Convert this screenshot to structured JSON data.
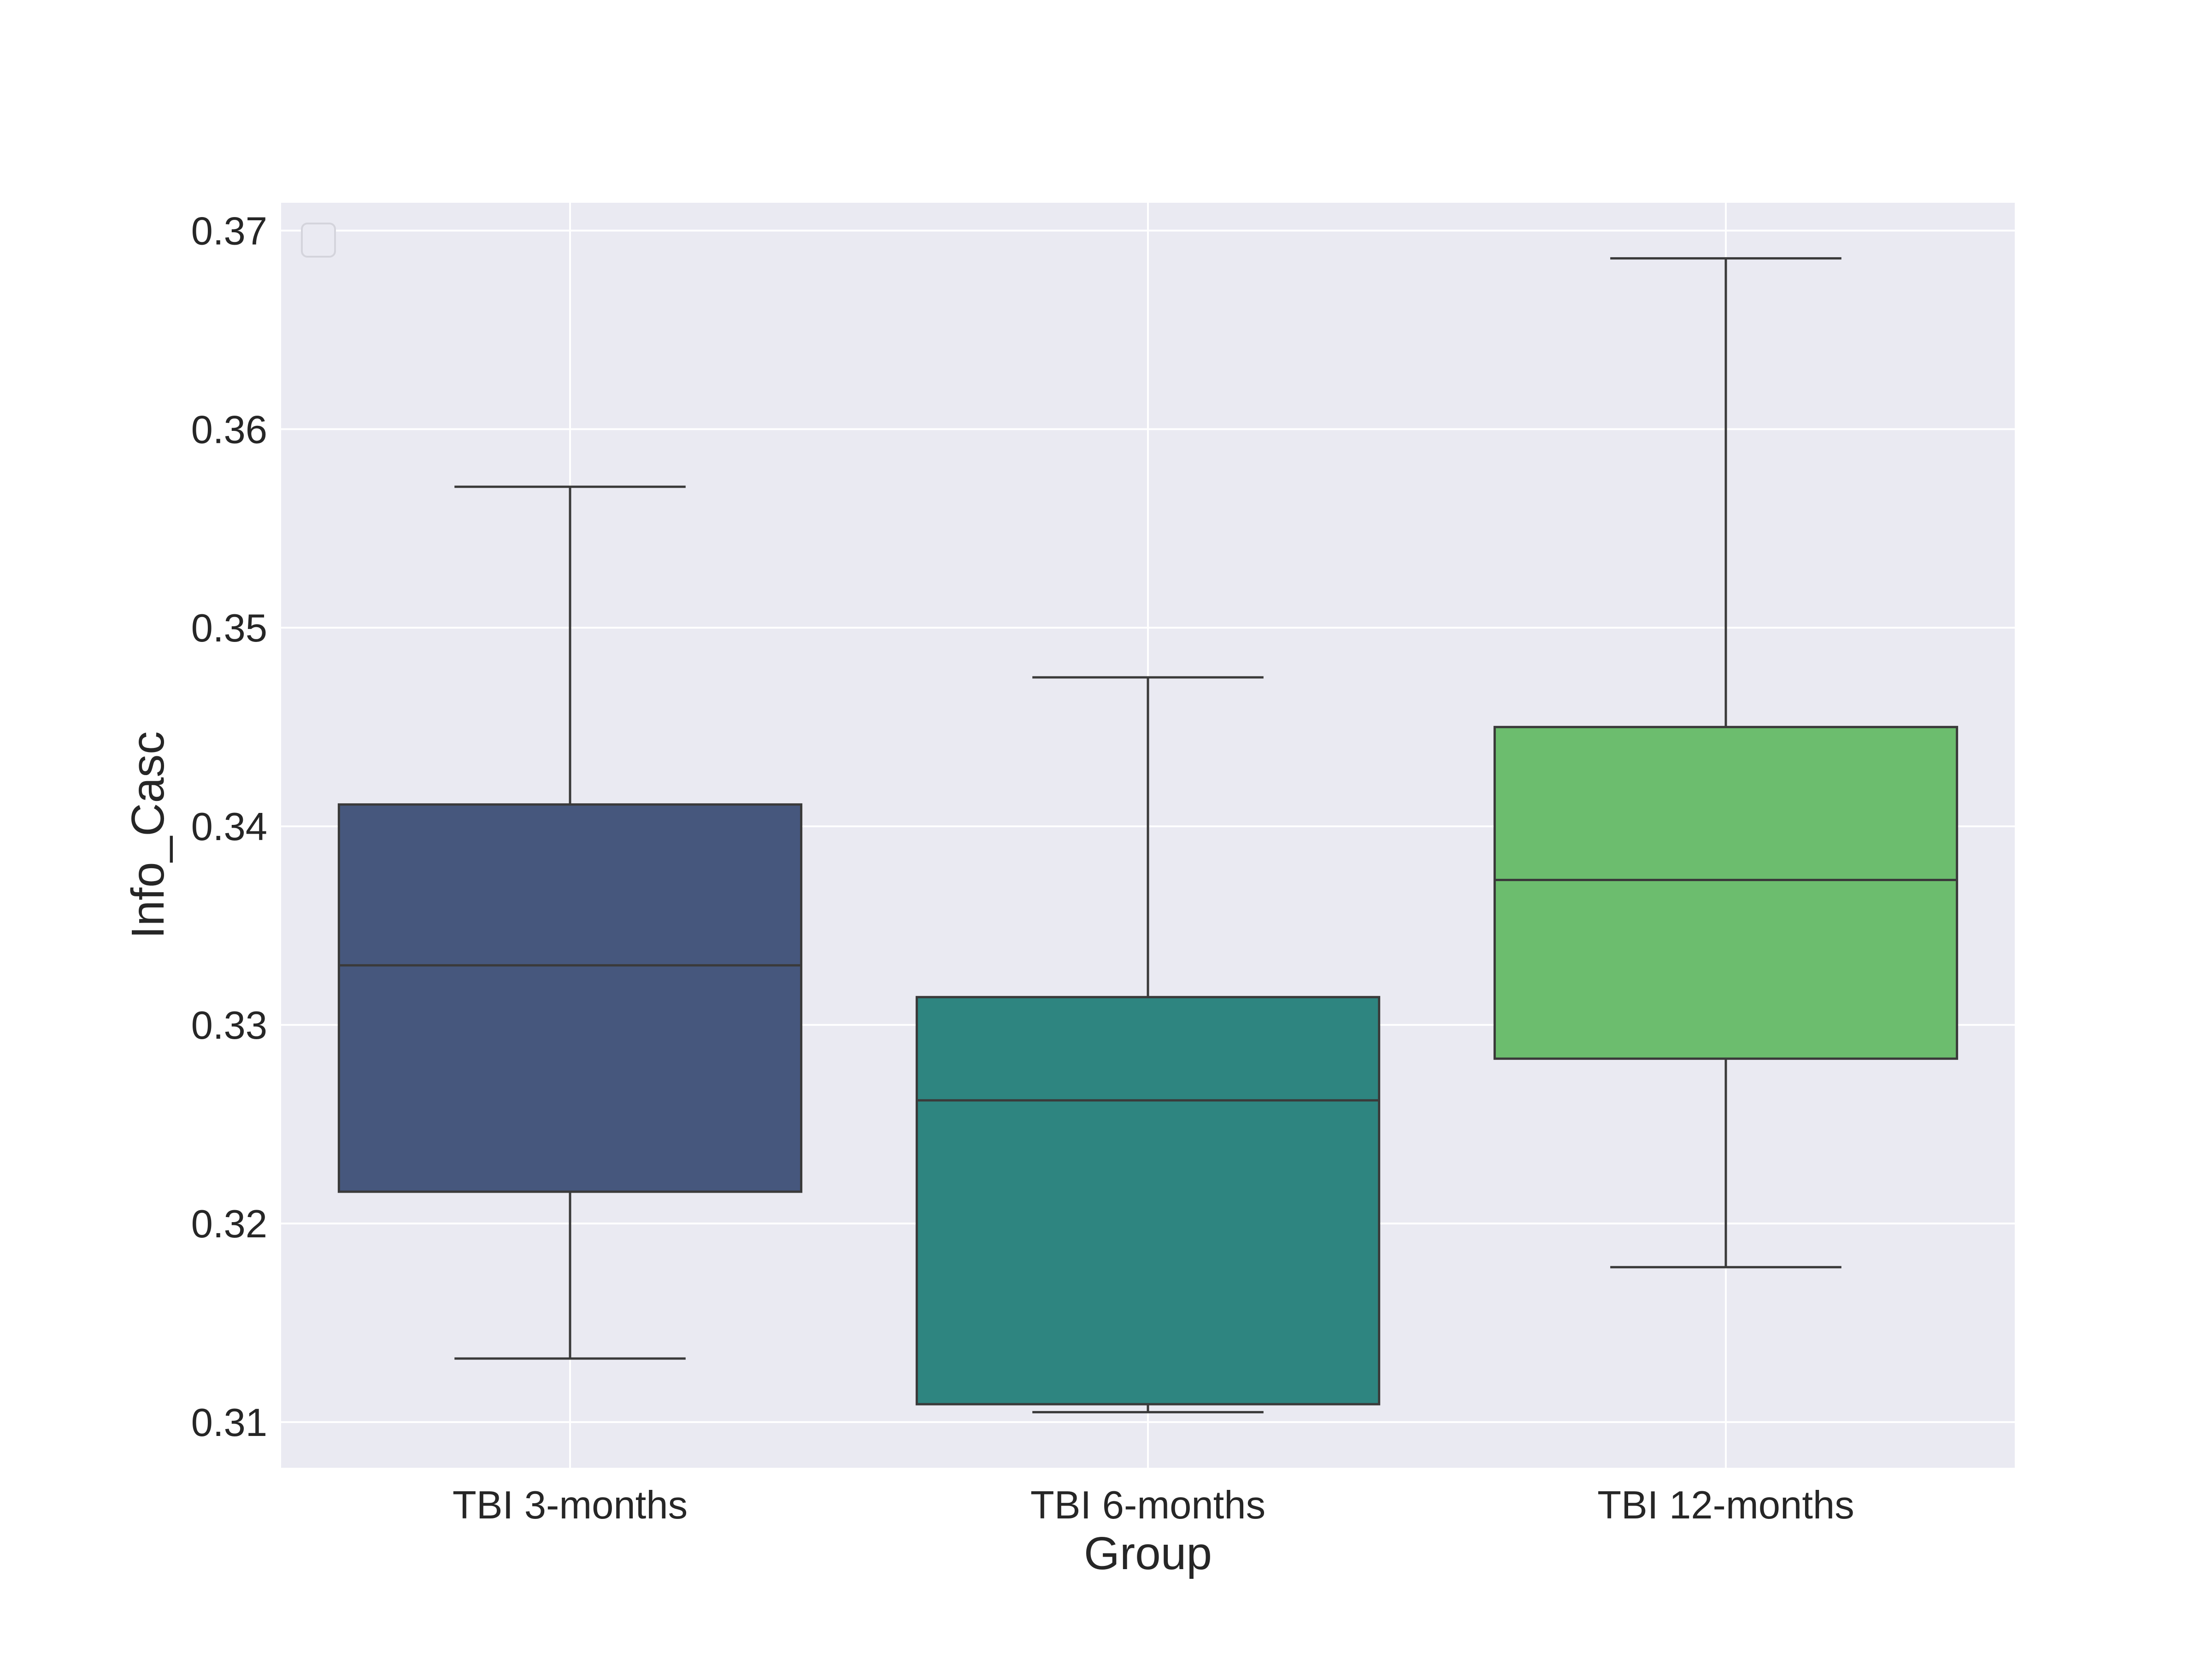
{
  "chart_data": {
    "type": "box",
    "xlabel": "Group",
    "ylabel": "Info_Casc",
    "ylim": [
      0.3077,
      0.3714
    ],
    "yticks": [
      0.31,
      0.32,
      0.33,
      0.34,
      0.35,
      0.36,
      0.37
    ],
    "ytick_labels": [
      "0.31",
      "0.32",
      "0.33",
      "0.34",
      "0.35",
      "0.36",
      "0.37"
    ],
    "grid": true,
    "legend": "top-left (empty)",
    "categories": [
      "TBI 3-months",
      "TBI 6-months",
      "TBI 12-months"
    ],
    "boxes": [
      {
        "category": "TBI 3-months",
        "whisker_low": 0.3132,
        "q1": 0.3216,
        "median": 0.333,
        "q3": 0.3411,
        "whisker_high": 0.3571,
        "color": "#46577d"
      },
      {
        "category": "TBI 6-months",
        "whisker_low": 0.3105,
        "q1": 0.3109,
        "median": 0.3262,
        "q3": 0.3314,
        "whisker_high": 0.3475,
        "color": "#2e8580"
      },
      {
        "category": "TBI 12-months",
        "whisker_low": 0.3178,
        "q1": 0.3283,
        "median": 0.3373,
        "q3": 0.345,
        "whisker_high": 0.3686,
        "color": "#6cbd6e"
      }
    ],
    "colors": {
      "background": "#eaeaf2",
      "grid": "#ffffff",
      "lines": "#3a3a3a",
      "text": "#262626"
    }
  }
}
